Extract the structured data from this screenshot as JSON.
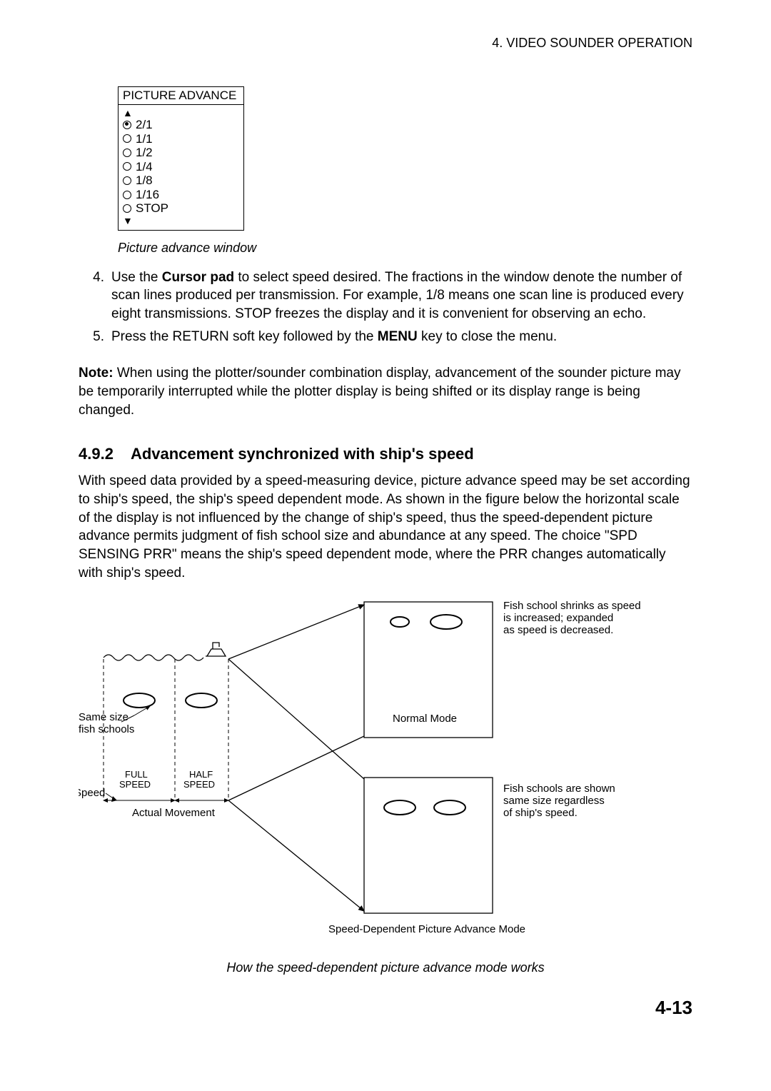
{
  "header": "4. VIDEO SOUNDER OPERATION",
  "picture_advance": {
    "title": "PICTURE ADVANCE",
    "options": [
      "2/1",
      "1/1",
      "1/2",
      "1/4",
      "1/8",
      "1/16",
      "STOP"
    ],
    "selected_index": 0
  },
  "caption1": "Picture advance window",
  "list": [
    {
      "num": "4.",
      "parts": [
        {
          "t": "Use the "
        },
        {
          "t": "Cursor pad",
          "b": true
        },
        {
          "t": " to select speed desired. The fractions in the window denote the number of scan lines produced per transmission. For example, 1/8 means one scan line is produced every eight transmissions. STOP freezes the display and it is convenient for observing an echo."
        }
      ]
    },
    {
      "num": "5.",
      "parts": [
        {
          "t": "Press the RETURN soft key followed by the "
        },
        {
          "t": "MENU",
          "b": true
        },
        {
          "t": " key to close the menu."
        }
      ]
    }
  ],
  "note_label": "Note:",
  "note_body": " When using the plotter/sounder combination display, advancement of the sounder picture may be temporarily interrupted while the plotter display is being shifted or its display range is being changed.",
  "section": {
    "num": "4.9.2",
    "title": "Advancement synchronized with ship's speed"
  },
  "para": "With speed data provided by a speed-measuring device, picture advance speed may be set according to ship's speed, the ship's speed dependent mode. As shown in the figure below the horizontal scale of the display is not influenced by the change of ship's speed, thus the speed-dependent picture advance permits judgment of fish school size and abundance at any speed. The choice \"SPD SENSING PRR\" means the ship's speed dependent mode, where the PRR changes automatically with ship's speed.",
  "figure": {
    "labels": {
      "same_size": "Same size\nfish schools",
      "speed": "Speed",
      "full_speed": "FULL\nSPEED",
      "half_speed": "HALF\nSPEED",
      "actual_movement": "Actual Movement",
      "normal_mode": "Normal Mode",
      "top_note": "Fish school shrinks as speed\nis increased; expanded\nas speed is decreased.",
      "bottom_note": "Fish schools are shown\nsame size regardless\nof ship's speed.",
      "mode_caption": "Speed-Dependent Picture Advance Mode"
    },
    "colors": {
      "stroke": "#000000",
      "fill_bg": "#ffffff",
      "ellipse_fill": "#ffffff"
    },
    "font_sizes": {
      "small": 14,
      "med": 15
    }
  },
  "caption2": "How the speed-dependent picture advance mode works",
  "page_num": "4-13"
}
